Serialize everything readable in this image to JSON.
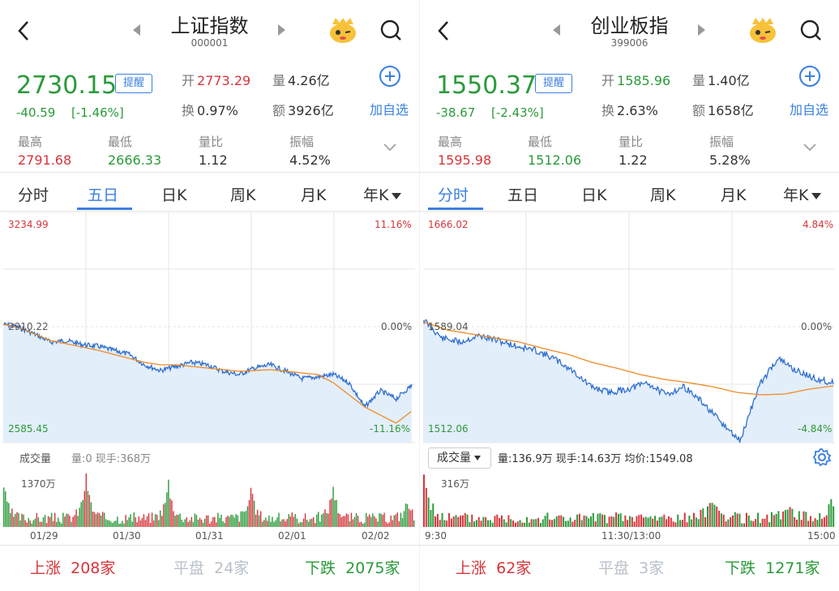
{
  "panels": [
    {
      "title": "上证指数",
      "code": "000001",
      "price": "2730.15",
      "change": "-40.59",
      "pct": "[-1.46%]",
      "remind": "提醒",
      "add_label": "加自选",
      "open_k": "开",
      "open_v": "2773.29",
      "vol_k": "量",
      "vol_v": "4.26亿",
      "turn_k": "换",
      "turn_v": "0.97%",
      "amt_k": "额",
      "amt_v": "3926亿",
      "stats": [
        {
          "label": "最高",
          "value": "2791.68",
          "color": "red"
        },
        {
          "label": "最低",
          "value": "2666.33",
          "color": "green"
        },
        {
          "label": "量比",
          "value": "1.12",
          "color": "dark"
        },
        {
          "label": "振幅",
          "value": "4.52%",
          "color": "dark"
        }
      ],
      "tabs": [
        "分时",
        "五日",
        "日K",
        "周K",
        "月K",
        "年K"
      ],
      "active_tab": 1,
      "chart": {
        "ymax": "3234.99",
        "ymid": "2910.22",
        "ymin": "2585.45",
        "pmax": "11.16%",
        "pmid": "0.00%",
        "pmin": "-11.16%"
      },
      "volume": {
        "label": "成交量",
        "info": "量:0 现手:368万",
        "max": "1370万"
      },
      "xlabels": [
        "01/29",
        "01/30",
        "01/31",
        "02/01",
        "02/02"
      ],
      "breadth": {
        "up_k": "上涨",
        "up_v": "208家",
        "flat_k": "平盘",
        "flat_v": "24家",
        "down_k": "下跌",
        "down_v": "2075家"
      }
    },
    {
      "title": "创业板指",
      "code": "399006",
      "price": "1550.37",
      "change": "-38.67",
      "pct": "[-2.43%]",
      "remind": "提醒",
      "add_label": "加自选",
      "open_k": "开",
      "open_v": "1585.96",
      "vol_k": "量",
      "vol_v": "1.40亿",
      "turn_k": "换",
      "turn_v": "2.63%",
      "amt_k": "额",
      "amt_v": "1658亿",
      "stats": [
        {
          "label": "最高",
          "value": "1595.98",
          "color": "red"
        },
        {
          "label": "最低",
          "value": "1512.06",
          "color": "green"
        },
        {
          "label": "量比",
          "value": "1.22",
          "color": "dark"
        },
        {
          "label": "振幅",
          "value": "5.28%",
          "color": "dark"
        }
      ],
      "tabs": [
        "分时",
        "五日",
        "日K",
        "周K",
        "月K",
        "年K"
      ],
      "active_tab": 0,
      "chart": {
        "ymax": "1666.02",
        "ymid": "1589.04",
        "ymin": "1512.06",
        "pmax": "4.84%",
        "pmid": "0.00%",
        "pmin": "-4.84%"
      },
      "volume": {
        "label": "成交量",
        "info": "量:136.9万  现手:14.63万  均价:1549.08",
        "max": "316万"
      },
      "xlabels": [
        "9:30",
        "11:30/13:00",
        "15:00"
      ],
      "breadth": {
        "up_k": "上涨",
        "up_v": "62家",
        "flat_k": "平盘",
        "flat_v": "3家",
        "down_k": "下跌",
        "down_v": "1271家"
      }
    }
  ]
}
